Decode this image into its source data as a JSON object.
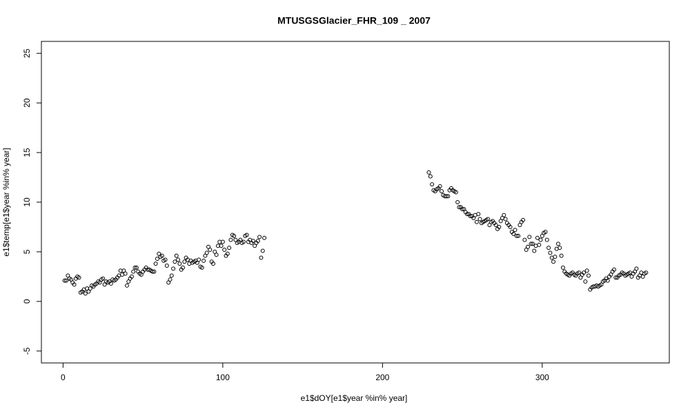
{
  "chart_data": {
    "type": "scatter",
    "title": "MTUSGSGlacier_FHR_109 _ 2007",
    "x_label": "e1$dOY[e1$year %in% year]",
    "y_label": "e1$temp[e1$year %in% year]",
    "xlim": [
      -13.56,
      379.56
    ],
    "ylim": [
      -6.2,
      26.2
    ],
    "xticks": [
      0,
      100,
      200,
      300
    ],
    "yticks": [
      -5,
      0,
      5,
      10,
      15,
      20,
      25
    ],
    "color": "#000000",
    "x": [
      1,
      2,
      3,
      4,
      5,
      6,
      7,
      8,
      9,
      10,
      11,
      12,
      13,
      14,
      15,
      16,
      17,
      18,
      19,
      20,
      21,
      22,
      23,
      24,
      25,
      26,
      27,
      28,
      29,
      30,
      31,
      32,
      33,
      34,
      35,
      36,
      37,
      38,
      39,
      40,
      41,
      42,
      43,
      44,
      45,
      46,
      47,
      48,
      49,
      50,
      51,
      52,
      53,
      54,
      55,
      56,
      57,
      58,
      59,
      60,
      61,
      62,
      63,
      64,
      65,
      66,
      67,
      68,
      69,
      70,
      71,
      72,
      73,
      74,
      75,
      76,
      77,
      78,
      79,
      80,
      81,
      82,
      83,
      84,
      85,
      86,
      87,
      88,
      89,
      90,
      91,
      92,
      93,
      94,
      95,
      96,
      97,
      98,
      99,
      100,
      101,
      102,
      103,
      104,
      105,
      106,
      107,
      108,
      109,
      110,
      111,
      112,
      113,
      114,
      115,
      116,
      117,
      118,
      119,
      120,
      121,
      122,
      123,
      124,
      125,
      126,
      229,
      230,
      231,
      232,
      233,
      234,
      235,
      236,
      237,
      238,
      239,
      240,
      241,
      242,
      243,
      244,
      245,
      246,
      247,
      248,
      249,
      250,
      251,
      252,
      253,
      254,
      255,
      256,
      257,
      258,
      259,
      260,
      261,
      262,
      263,
      264,
      265,
      266,
      267,
      268,
      269,
      270,
      271,
      272,
      273,
      274,
      275,
      276,
      277,
      278,
      279,
      280,
      281,
      282,
      283,
      284,
      285,
      286,
      287,
      288,
      289,
      290,
      291,
      292,
      293,
      294,
      295,
      296,
      297,
      298,
      299,
      300,
      301,
      302,
      303,
      304,
      305,
      306,
      307,
      308,
      309,
      310,
      311,
      312,
      313,
      314,
      315,
      316,
      317,
      318,
      319,
      320,
      321,
      322,
      323,
      324,
      325,
      326,
      327,
      328,
      329,
      330,
      331,
      332,
      333,
      334,
      335,
      336,
      337,
      338,
      339,
      340,
      341,
      342,
      343,
      344,
      345,
      346,
      347,
      348,
      349,
      350,
      351,
      352,
      353,
      354,
      355,
      356,
      357,
      358,
      359,
      360,
      361,
      362,
      363,
      364,
      365
    ],
    "values": [
      2.1,
      2.1,
      2.6,
      2.3,
      2.2,
      1.9,
      1.7,
      2.3,
      2.5,
      2.4,
      0.9,
      1.0,
      1.2,
      0.8,
      1.3,
      1.0,
      1.3,
      1.6,
      1.5,
      1.7,
      1.8,
      2.0,
      1.9,
      2.2,
      2.3,
      1.7,
      2.0,
      1.9,
      2.0,
      1.8,
      2.2,
      2.1,
      2.2,
      2.4,
      2.6,
      3.1,
      2.7,
      3.1,
      2.8,
      1.6,
      2.0,
      2.3,
      2.5,
      3.0,
      3.4,
      3.4,
      3.0,
      2.8,
      2.7,
      3.0,
      3.2,
      3.4,
      3.2,
      3.2,
      3.1,
      3.0,
      3.0,
      3.8,
      4.3,
      4.8,
      4.5,
      4.6,
      4.1,
      4.2,
      3.6,
      1.9,
      2.2,
      2.6,
      3.3,
      4.0,
      4.6,
      4.2,
      3.8,
      3.2,
      3.4,
      4.0,
      4.4,
      4.2,
      3.8,
      4.1,
      3.9,
      4.0,
      4.1,
      3.9,
      4.2,
      3.5,
      3.4,
      4.1,
      4.6,
      4.9,
      5.5,
      5.2,
      4.0,
      3.8,
      5.0,
      4.7,
      5.6,
      6.0,
      5.6,
      6.0,
      5.2,
      4.6,
      4.8,
      5.4,
      6.2,
      6.7,
      6.6,
      6.2,
      5.9,
      6.0,
      6.2,
      5.9,
      6.0,
      6.6,
      6.7,
      6.0,
      6.2,
      5.9,
      6.1,
      5.6,
      5.9,
      6.1,
      6.5,
      4.4,
      5.1,
      6.4,
      13.0,
      12.6,
      11.8,
      11.2,
      11.1,
      11.3,
      11.4,
      11.6,
      11.1,
      10.7,
      10.6,
      10.6,
      10.6,
      11.2,
      11.4,
      11.2,
      11.1,
      11.0,
      10.0,
      9.5,
      9.5,
      9.3,
      9.3,
      9.0,
      8.8,
      8.8,
      8.6,
      8.6,
      8.4,
      8.7,
      8.0,
      8.8,
      8.3,
      7.9,
      8.0,
      8.1,
      8.2,
      8.3,
      7.7,
      8.0,
      8.1,
      7.9,
      7.7,
      7.3,
      7.5,
      8.1,
      8.4,
      8.7,
      8.3,
      7.9,
      7.7,
      7.5,
      7.0,
      6.8,
      7.2,
      6.6,
      6.6,
      7.7,
      8.0,
      8.2,
      6.2,
      5.2,
      5.5,
      6.5,
      5.8,
      5.8,
      5.1,
      5.6,
      6.4,
      5.7,
      6.2,
      6.6,
      6.9,
      7.0,
      6.2,
      5.4,
      4.9,
      4.4,
      4.0,
      4.5,
      5.3,
      5.8,
      5.4,
      4.6,
      3.4,
      3.0,
      2.8,
      2.7,
      2.6,
      2.8,
      2.9,
      2.7,
      2.6,
      2.8,
      2.9,
      2.4,
      2.7,
      2.9,
      2.0,
      3.1,
      2.6,
      1.2,
      1.4,
      1.5,
      1.5,
      1.6,
      1.5,
      1.6,
      1.7,
      2.0,
      2.1,
      2.3,
      2.1,
      2.5,
      2.7,
      3.0,
      3.2,
      2.4,
      2.4,
      2.6,
      2.7,
      2.9,
      2.8,
      2.6,
      2.7,
      2.8,
      2.9,
      2.5,
      2.8,
      3.0,
      3.3,
      2.4,
      2.6,
      2.9,
      2.5,
      2.8,
      2.9
    ]
  }
}
